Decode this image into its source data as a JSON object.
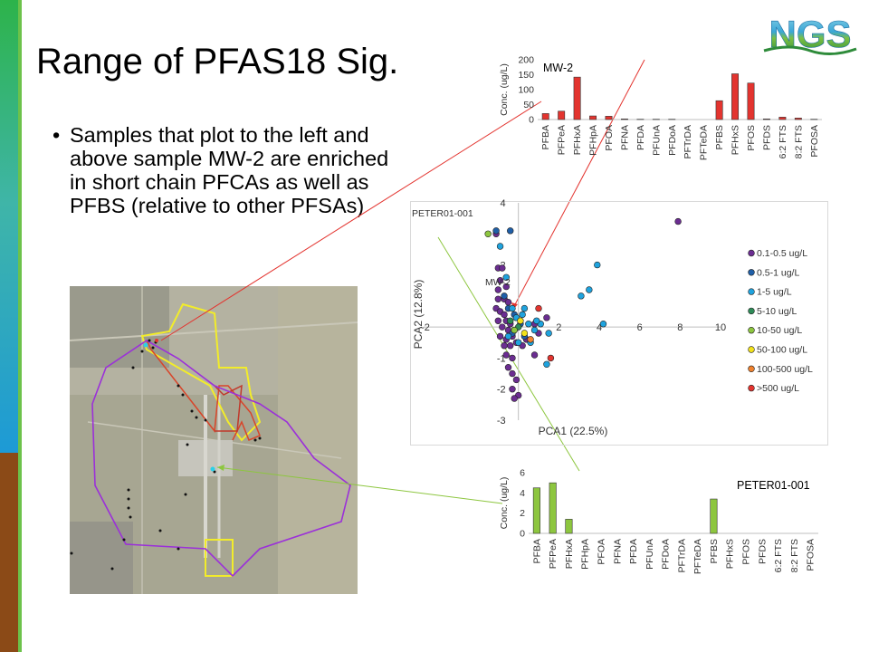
{
  "slide": {
    "title": "Range of PFAS18 Sig.",
    "bullet": "Samples that plot to the left and above sample MW-2 are enriched in short chain PFCAs as well as PFBS (relative to other PFSAs)",
    "bullet_marker": "•",
    "logo_text": "NGS",
    "accent_colors": {
      "green": "#2db34a",
      "blue": "#1d8fd6",
      "brown": "#8b4a17",
      "red": "#e3342f",
      "olive": "#8dc63f"
    }
  },
  "chart_data": [
    {
      "type": "bar",
      "title": "MW-2",
      "ylabel": "Conc. (ug/L)",
      "ylim": [
        0,
        200
      ],
      "yticks": [
        0,
        50,
        100,
        150,
        200
      ],
      "color": "#e3342f",
      "categories": [
        "PFBA",
        "PFPeA",
        "PFHxA",
        "PFHpA",
        "PFOA",
        "PFNA",
        "PFDA",
        "PFUnA",
        "PFDoA",
        "PFTrDA",
        "PFTeDA",
        "PFBS",
        "PFHxS",
        "PFOS",
        "PFDS",
        "6:2 FTS",
        "8:2 FTS",
        "PFOSA"
      ],
      "values": [
        20,
        28,
        142,
        12,
        11,
        2,
        1,
        1,
        1,
        0,
        0,
        63,
        153,
        122,
        2,
        8,
        5,
        1
      ]
    },
    {
      "type": "scatter",
      "title": "",
      "xlabel": "PCA1 (22.5%)",
      "ylabel": "PCA2 (12.8%)",
      "xlim": [
        -2,
        10
      ],
      "ylim": [
        -3,
        4
      ],
      "xticks": [
        -2,
        2,
        4,
        6,
        8,
        10
      ],
      "yticks": [
        -3,
        -2,
        -1,
        2,
        4
      ],
      "grid": false,
      "legend_position": "right",
      "annotations": [
        "PETER01-001",
        "MW-2"
      ],
      "series": [
        {
          "name": "0.1-0.5 ug/L",
          "color": "#6b2d91",
          "points": [
            [
              7.9,
              3.4
            ],
            [
              -1.1,
              3.0
            ],
            [
              -1.0,
              1.9
            ],
            [
              -0.8,
              1.9
            ],
            [
              -0.9,
              1.5
            ],
            [
              -1.0,
              1.2
            ],
            [
              -0.6,
              1.3
            ],
            [
              -1.0,
              0.9
            ],
            [
              -0.7,
              0.9
            ],
            [
              -0.5,
              0.8
            ],
            [
              -1.1,
              0.6
            ],
            [
              -0.9,
              0.5
            ],
            [
              -0.7,
              0.4
            ],
            [
              -1.0,
              0.2
            ],
            [
              -0.6,
              0.2
            ],
            [
              -0.4,
              0.1
            ],
            [
              -0.8,
              0.0
            ],
            [
              -0.5,
              -0.1
            ],
            [
              -0.2,
              -0.1
            ],
            [
              -0.9,
              -0.3
            ],
            [
              -0.6,
              -0.4
            ],
            [
              -0.3,
              -0.3
            ],
            [
              -0.7,
              -0.6
            ],
            [
              -0.4,
              -0.6
            ],
            [
              -0.1,
              -0.5
            ],
            [
              0.2,
              -0.6
            ],
            [
              -0.6,
              -0.9
            ],
            [
              -0.3,
              -1.0
            ],
            [
              -0.5,
              -1.3
            ],
            [
              -0.3,
              -1.5
            ],
            [
              -0.1,
              -1.7
            ],
            [
              -0.3,
              -2.0
            ],
            [
              0.0,
              -2.2
            ],
            [
              -0.2,
              -2.3
            ],
            [
              0.8,
              -0.9
            ],
            [
              0.4,
              -0.4
            ],
            [
              1.4,
              0.3
            ],
            [
              0.8,
              0.1
            ],
            [
              1.0,
              -0.2
            ]
          ]
        },
        {
          "name": "0.5-1 ug/L",
          "color": "#1f5fa8",
          "points": [
            [
              -1.1,
              3.1
            ],
            [
              -0.4,
              3.1
            ],
            [
              -0.7,
              1.0
            ],
            [
              -0.5,
              0.6
            ],
            [
              -0.2,
              0.4
            ],
            [
              0.1,
              0.1
            ],
            [
              -0.3,
              -0.2
            ],
            [
              0.3,
              -0.3
            ]
          ]
        },
        {
          "name": "1-5 ug/L",
          "color": "#1fa3de",
          "points": [
            [
              3.9,
              2.0
            ],
            [
              3.1,
              1.0
            ],
            [
              3.5,
              1.2
            ],
            [
              4.2,
              0.1
            ],
            [
              -0.9,
              2.6
            ],
            [
              -0.6,
              1.6
            ],
            [
              -0.3,
              0.6
            ],
            [
              -0.1,
              0.3
            ],
            [
              0.2,
              0.4
            ],
            [
              0.5,
              0.1
            ],
            [
              0.8,
              -0.1
            ],
            [
              1.5,
              -0.2
            ],
            [
              1.1,
              0.1
            ],
            [
              -0.5,
              -0.3
            ],
            [
              0.0,
              -0.5
            ],
            [
              0.6,
              -0.5
            ],
            [
              1.4,
              -1.2
            ],
            [
              0.3,
              0.6
            ],
            [
              0.9,
              0.2
            ]
          ]
        },
        {
          "name": "5-10 ug/L",
          "color": "#2e8b57",
          "points": [
            [
              -0.4,
              0.2
            ],
            [
              0.0,
              0.0
            ]
          ]
        },
        {
          "name": "10-50 ug/L",
          "color": "#8dc63f",
          "points": [
            [
              -1.5,
              3.0
            ],
            [
              -0.2,
              -0.1
            ]
          ]
        },
        {
          "name": "50-100 ug/L",
          "color": "#f2e21b",
          "points": [
            [
              0.1,
              0.2
            ],
            [
              0.3,
              -0.2
            ]
          ]
        },
        {
          "name": "100-500 ug/L",
          "color": "#f0822e",
          "points": [
            [
              0.6,
              -0.4
            ]
          ]
        },
        {
          "name": ">500 ug/L",
          "color": "#e3342f",
          "points": [
            [
              1.0,
              0.6
            ],
            [
              1.6,
              -1.0
            ]
          ]
        }
      ]
    },
    {
      "type": "bar",
      "title": "PETER01-001",
      "ylabel": "Conc. (ug/L)",
      "ylim": [
        0,
        6
      ],
      "yticks": [
        0,
        2,
        4,
        6
      ],
      "color": "#8dc63f",
      "categories": [
        "PFBA",
        "PFPeA",
        "PFHxA",
        "PFHpA",
        "PFOA",
        "PFNA",
        "PFDA",
        "PFUnA",
        "PFDoA",
        "PFTrDA",
        "PFTeDA",
        "PFBS",
        "PFHxS",
        "PFOS",
        "PFDS",
        "6:2 FTS",
        "8:2 FTS",
        "PFOSA"
      ],
      "values": [
        4.5,
        5.0,
        1.4,
        0,
        0,
        0,
        0,
        0,
        0,
        0,
        0,
        3.4,
        0,
        0,
        0,
        0,
        0,
        0
      ]
    }
  ]
}
